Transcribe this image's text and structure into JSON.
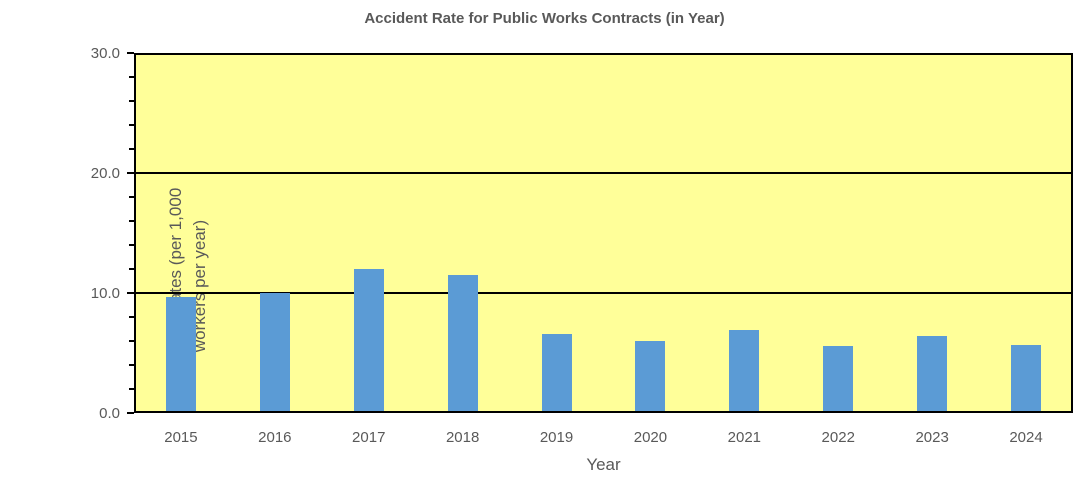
{
  "title": "Accident Rate for Public Works Contracts (in Year)",
  "chart_data": {
    "type": "bar",
    "title": "Accident Rate for Public Works Contracts (in Year)",
    "categories": [
      "2015",
      "2016",
      "2017",
      "2018",
      "2019",
      "2020",
      "2021",
      "2022",
      "2023",
      "2024"
    ],
    "values": [
      9.7,
      10.0,
      12.0,
      11.5,
      6.6,
      6.0,
      6.9,
      5.6,
      6.4,
      5.7
    ],
    "xlabel": "Year",
    "ylabel": "Accident Rates (per 1,000 workers per year)",
    "ylabel_line1": "Accident Rates (per 1,000",
    "ylabel_line2": "workers per year)",
    "ylim": [
      0,
      30
    ],
    "ytick_values": [
      0,
      10,
      20,
      30
    ],
    "ytick_labels": [
      "0.0",
      "10.0",
      "20.0",
      "30.0"
    ],
    "minor_tick_interval": 2,
    "grid": true,
    "legend": "none",
    "colors": {
      "bar": "#5B9BD5",
      "plot_background": "#FFFF99",
      "gridline": "#000000",
      "text": "#595959"
    }
  }
}
